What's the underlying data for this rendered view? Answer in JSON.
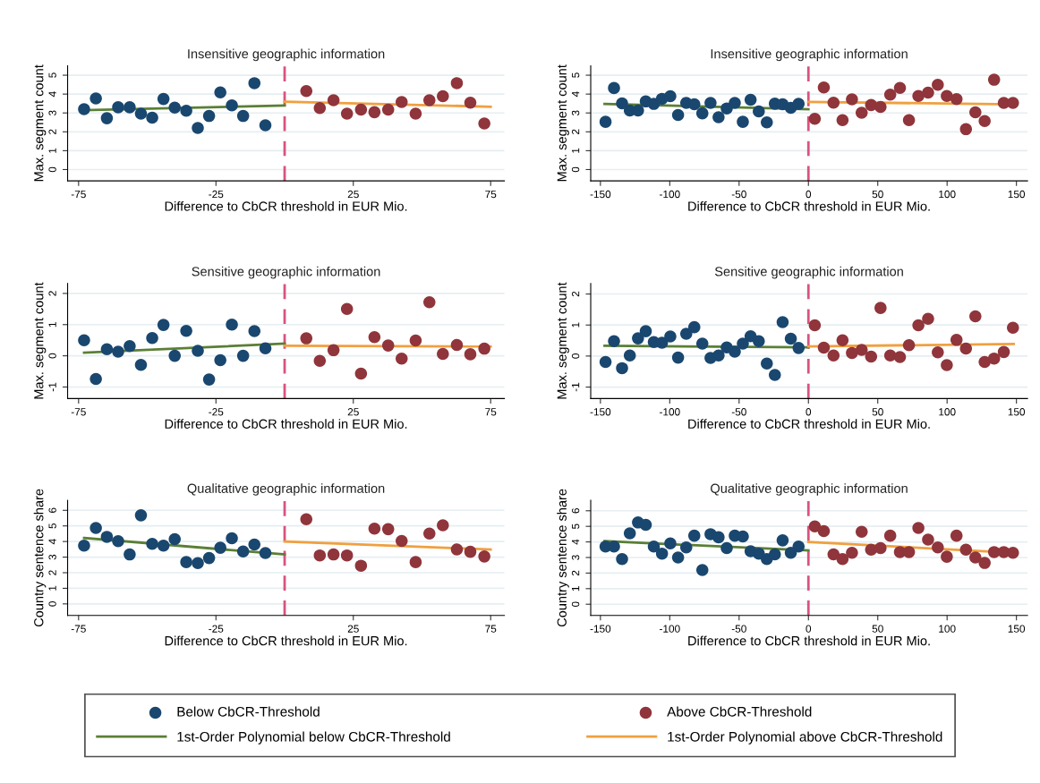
{
  "chart_data": [
    {
      "type": "scatter",
      "title": "Insensitive geographic information",
      "xlabel": "Difference to CbCR threshold in EUR Mio.",
      "ylabel": "Max. segment count",
      "xlim": [
        -79,
        80
      ],
      "xticks": [
        -75,
        -25,
        25,
        75
      ],
      "ylim": [
        -0.6,
        5.5
      ],
      "yticks": [
        0,
        1,
        2,
        3,
        4,
        5
      ],
      "grid": "y",
      "legend": "bottom",
      "ref_lines": [
        {
          "axis": "x",
          "value": 0,
          "color": "#d9537f",
          "line_style": "dashed"
        }
      ],
      "series": [
        {
          "name": "Below CbCR-Threshold",
          "marker": "circle",
          "color": "#1a476f",
          "x": [
            -73,
            -68.7,
            -64.7,
            -60.6,
            -56.4,
            -52.3,
            -48.2,
            -44.1,
            -40,
            -35.8,
            -31.6,
            -27.5,
            -23.4,
            -19.2,
            -15.1,
            -11,
            -7
          ],
          "values": [
            3.2,
            3.77,
            2.72,
            3.3,
            3.3,
            2.96,
            2.75,
            3.74,
            3.28,
            3.12,
            2.2,
            2.84,
            4.09,
            3.4,
            2.84,
            4.58,
            2.35
          ]
        },
        {
          "name": "1st-Order Polynomial below CbCR-Threshold",
          "type": "line",
          "marker": "none",
          "color": "#5a7f35",
          "x": [
            -73,
            0
          ],
          "values": [
            3.15,
            3.39
          ]
        },
        {
          "name": "Above CbCR-Threshold",
          "marker": "circle",
          "color": "#90353b",
          "x": [
            7.9,
            12.8,
            17.8,
            22.7,
            27.8,
            32.7,
            37.7,
            42.6,
            47.7,
            52.7,
            57.6,
            62.7,
            67.6,
            72.7
          ],
          "values": [
            4.16,
            3.26,
            3.67,
            2.96,
            3.18,
            3.04,
            3.18,
            3.58,
            2.96,
            3.67,
            3.89,
            4.58,
            3.54,
            2.44
          ]
        },
        {
          "name": "1st-Order Polynomial above CbCR-Threshold",
          "type": "line",
          "marker": "none",
          "color": "#f0a040",
          "x": [
            0,
            75
          ],
          "values": [
            3.6,
            3.33
          ]
        }
      ]
    },
    {
      "type": "scatter",
      "title": "Insensitive geographic information",
      "xlabel": "Difference to CbCR threshold in EUR Mio.",
      "ylabel": "Max. segment count",
      "xlim": [
        -157,
        158
      ],
      "xticks": [
        -150,
        -100,
        -50,
        0,
        50,
        100,
        150
      ],
      "ylim": [
        -0.6,
        5.5
      ],
      "yticks": [
        0,
        1,
        2,
        3,
        4,
        5
      ],
      "grid": "y",
      "ref_lines": [
        {
          "axis": "x",
          "value": 0,
          "color": "#d9537f",
          "line_style": "dashed"
        }
      ],
      "series": [
        {
          "marker": "circle",
          "color": "#1a476f",
          "x": [
            -146.3,
            -140.2,
            -134.4,
            -128.8,
            -122.9,
            -117.3,
            -111.5,
            -105.6,
            -99.6,
            -94,
            -88.1,
            -82.3,
            -76.5,
            -70.6,
            -64.8,
            -58.9,
            -53.1,
            -47.3,
            -41.7,
            -35.8,
            -30,
            -24.2,
            -18.6,
            -12.7,
            -7.1
          ],
          "values": [
            2.53,
            4.32,
            3.51,
            3.13,
            3.13,
            3.61,
            3.48,
            3.75,
            3.89,
            2.89,
            3.53,
            3.46,
            2.98,
            3.53,
            2.77,
            3.24,
            3.53,
            2.53,
            3.7,
            3.08,
            2.5,
            3.49,
            3.46,
            3.27,
            3.48
          ]
        },
        {
          "type": "line",
          "marker": "none",
          "color": "#5a7f35",
          "x": [
            -147,
            0
          ],
          "values": [
            3.48,
            3.2
          ]
        },
        {
          "marker": "circle",
          "color": "#90353b",
          "x": [
            4.6,
            11.1,
            18.1,
            24.6,
            31.4,
            38.4,
            45.2,
            52,
            59,
            66,
            72.5,
            79.3,
            86.3,
            93.3,
            99.8,
            106.8,
            113.6,
            120.4,
            127.1,
            133.9,
            140.9,
            147.5
          ],
          "values": [
            2.69,
            4.35,
            3.54,
            2.62,
            3.72,
            3.01,
            3.42,
            3.32,
            3.97,
            4.33,
            2.62,
            3.9,
            4.08,
            4.49,
            3.9,
            3.73,
            2.14,
            3.03,
            2.57,
            4.76,
            3.53,
            3.53
          ]
        },
        {
          "type": "line",
          "marker": "none",
          "color": "#f0a040",
          "x": [
            0,
            148
          ],
          "values": [
            3.58,
            3.46
          ]
        }
      ]
    },
    {
      "type": "scatter",
      "title": "Sensitive geographic information",
      "xlabel": "Difference to CbCR threshold in EUR Mio.",
      "ylabel": "Max. segment count",
      "xlim": [
        -79,
        80
      ],
      "xticks": [
        -75,
        -25,
        25,
        75
      ],
      "ylim": [
        -1.37,
        2.32
      ],
      "yticks": [
        -1,
        0,
        1,
        2
      ],
      "grid": "y",
      "ref_lines": [
        {
          "axis": "x",
          "value": 0,
          "color": "#d9537f",
          "line_style": "dashed"
        }
      ],
      "series": [
        {
          "marker": "circle",
          "color": "#1a476f",
          "x": [
            -73,
            -68.7,
            -64.7,
            -60.6,
            -56.4,
            -52.3,
            -48.2,
            -44.1,
            -40,
            -35.8,
            -31.6,
            -27.5,
            -23.4,
            -19.2,
            -15.1,
            -11,
            -7
          ],
          "values": [
            0.5,
            -0.74,
            0.21,
            0.13,
            0.31,
            -0.29,
            0.57,
            0.99,
            0,
            0.8,
            0.16,
            -0.76,
            -0.14,
            1,
            0,
            0.79,
            0.24
          ]
        },
        {
          "type": "line",
          "marker": "none",
          "color": "#5a7f35",
          "x": [
            -73,
            0
          ],
          "values": [
            0.1,
            0.39
          ]
        },
        {
          "marker": "circle",
          "color": "#90353b",
          "x": [
            7.9,
            12.8,
            17.8,
            22.7,
            27.8,
            32.7,
            37.7,
            42.6,
            47.7,
            52.7,
            57.6,
            62.7,
            67.6,
            72.7
          ],
          "values": [
            0.56,
            -0.16,
            0.18,
            1.5,
            -0.57,
            0.6,
            0.33,
            -0.09,
            0.49,
            1.72,
            0.06,
            0.35,
            0.05,
            0.23
          ]
        },
        {
          "type": "line",
          "marker": "none",
          "color": "#f0a040",
          "x": [
            0,
            75
          ],
          "values": [
            0.32,
            0.3
          ]
        }
      ]
    },
    {
      "type": "scatter",
      "title": "Sensitive geographic information",
      "xlabel": "Difference to CbCR threshold in EUR Mio.",
      "ylabel": "Max. segment count",
      "xlim": [
        -157,
        158
      ],
      "xticks": [
        -150,
        -100,
        -50,
        0,
        50,
        100,
        150
      ],
      "ylim": [
        -1.37,
        2.34
      ],
      "yticks": [
        -1,
        0,
        1,
        2
      ],
      "grid": "y",
      "ref_lines": [
        {
          "axis": "x",
          "value": 0,
          "color": "#d9537f",
          "line_style": "dashed"
        }
      ],
      "series": [
        {
          "marker": "circle",
          "color": "#1a476f",
          "x": [
            -146.3,
            -140.2,
            -134.4,
            -128.8,
            -122.9,
            -117.3,
            -111.5,
            -105.6,
            -99.6,
            -94,
            -88.1,
            -82.3,
            -76.5,
            -70.6,
            -64.8,
            -58.9,
            -53.1,
            -47.3,
            -41.7,
            -35.8,
            -30,
            -24.2,
            -18.6,
            -12.7,
            -7.1
          ],
          "values": [
            -0.19,
            0.48,
            -0.39,
            0.02,
            0.57,
            0.8,
            0.45,
            0.43,
            0.63,
            -0.05,
            0.72,
            0.93,
            0.4,
            -0.06,
            0.02,
            0.28,
            0.14,
            0.4,
            0.64,
            0.48,
            -0.24,
            -0.61,
            1.09,
            0.56,
            0.26
          ]
        },
        {
          "type": "line",
          "marker": "none",
          "color": "#5a7f35",
          "x": [
            -147,
            0
          ],
          "values": [
            0.33,
            0.28
          ]
        },
        {
          "marker": "circle",
          "color": "#90353b",
          "x": [
            4.6,
            11.1,
            18.1,
            24.6,
            31.4,
            38.4,
            45.2,
            52,
            59,
            66,
            72.5,
            79.3,
            86.3,
            93.3,
            99.8,
            106.8,
            113.6,
            120.4,
            127.1,
            133.9,
            140.9,
            147.5
          ],
          "values": [
            0.99,
            0.27,
            0.02,
            0.51,
            0.1,
            0.2,
            -0.02,
            1.55,
            0.02,
            -0.03,
            0.35,
            0.99,
            1.2,
            0.12,
            -0.29,
            0.52,
            0.24,
            1.28,
            -0.19,
            -0.08,
            0.13,
            0.91
          ]
        },
        {
          "type": "line",
          "marker": "none",
          "color": "#f0a040",
          "x": [
            0,
            148
          ],
          "values": [
            0.31,
            0.39
          ]
        }
      ]
    },
    {
      "type": "scatter",
      "title": "Qualitative geographic information",
      "xlabel": "Difference to CbCR threshold in EUR Mio.",
      "ylabel": "Country sentence share",
      "xlim": [
        -79,
        80
      ],
      "xticks": [
        -75,
        -25,
        25,
        75
      ],
      "ylim": [
        -0.74,
        6.64
      ],
      "yticks": [
        0,
        1,
        2,
        3,
        4,
        5,
        6
      ],
      "grid": "y",
      "ref_lines": [
        {
          "axis": "x",
          "value": 0,
          "color": "#d9537f",
          "line_style": "dashed"
        }
      ],
      "series": [
        {
          "marker": "circle",
          "color": "#1a476f",
          "x": [
            -73,
            -68.7,
            -64.7,
            -60.6,
            -56.4,
            -52.3,
            -48.2,
            -44.1,
            -40,
            -35.8,
            -31.6,
            -27.5,
            -23.4,
            -19.2,
            -15.1,
            -11,
            -7
          ],
          "values": [
            3.74,
            4.87,
            4.3,
            4.02,
            3.17,
            5.68,
            3.85,
            3.74,
            4.15,
            2.68,
            2.62,
            2.94,
            3.6,
            4.21,
            3.36,
            3.81,
            3.26
          ]
        },
        {
          "type": "line",
          "marker": "none",
          "color": "#5a7f35",
          "x": [
            -73,
            0
          ],
          "values": [
            4.23,
            3.17
          ]
        },
        {
          "marker": "circle",
          "color": "#90353b",
          "x": [
            7.9,
            12.8,
            17.8,
            22.7,
            27.8,
            32.7,
            37.7,
            42.6,
            47.7,
            52.7,
            57.6,
            62.7,
            67.6,
            72.7
          ],
          "values": [
            5.43,
            3.11,
            3.17,
            3.11,
            2.45,
            4.83,
            4.79,
            4.04,
            2.68,
            4.51,
            5.04,
            3.49,
            3.34,
            3.04
          ]
        },
        {
          "type": "line",
          "marker": "none",
          "color": "#f0a040",
          "x": [
            0,
            75
          ],
          "values": [
            4,
            3.49
          ]
        }
      ]
    },
    {
      "type": "scatter",
      "title": "Qualitative geographic information",
      "xlabel": "Difference to CbCR threshold in EUR Mio.",
      "ylabel": "Country sentence share",
      "xlim": [
        -157,
        158
      ],
      "xticks": [
        -150,
        -100,
        -50,
        0,
        50,
        100,
        150
      ],
      "ylim": [
        -0.72,
        6.67
      ],
      "yticks": [
        0,
        1,
        2,
        3,
        4,
        5,
        6
      ],
      "grid": "y",
      "ref_lines": [
        {
          "axis": "x",
          "value": 0,
          "color": "#d9537f",
          "line_style": "dashed"
        }
      ],
      "series": [
        {
          "marker": "circle",
          "color": "#1a476f",
          "x": [
            -146.3,
            -140.2,
            -134.4,
            -128.8,
            -122.9,
            -117.3,
            -111.5,
            -105.6,
            -99.6,
            -94,
            -88.1,
            -82.3,
            -76.5,
            -70.6,
            -64.8,
            -58.9,
            -53.1,
            -47.3,
            -41.7,
            -35.8,
            -30,
            -24.2,
            -18.6,
            -12.7,
            -7.1
          ],
          "values": [
            3.7,
            3.7,
            2.9,
            4.55,
            5.25,
            5.1,
            3.7,
            3.25,
            3.9,
            3,
            3.65,
            4.4,
            2.2,
            4.5,
            4.3,
            3.6,
            4.4,
            4.35,
            3.4,
            3.25,
            2.9,
            3.2,
            4.1,
            3.3,
            3.7
          ]
        },
        {
          "type": "line",
          "marker": "none",
          "color": "#5a7f35",
          "x": [
            -147,
            0
          ],
          "values": [
            4.05,
            3.45
          ]
        },
        {
          "marker": "circle",
          "color": "#90353b",
          "x": [
            4.6,
            11.1,
            18.1,
            24.6,
            31.4,
            38.4,
            45.2,
            52,
            59,
            66,
            72.5,
            79.3,
            86.3,
            93.3,
            99.8,
            106.8,
            113.6,
            120.4,
            127.1,
            133.9,
            140.9,
            147.5
          ],
          "values": [
            5,
            4.7,
            3.2,
            2.9,
            3.3,
            4.65,
            3.5,
            3.6,
            4.4,
            3.35,
            3.35,
            4.9,
            4.15,
            3.65,
            3.05,
            4.4,
            3.5,
            3,
            2.65,
            3.35,
            3.35,
            3.3
          ]
        },
        {
          "type": "line",
          "marker": "none",
          "color": "#f0a040",
          "x": [
            0,
            148
          ],
          "values": [
            4,
            3.3
          ]
        }
      ]
    }
  ]
}
